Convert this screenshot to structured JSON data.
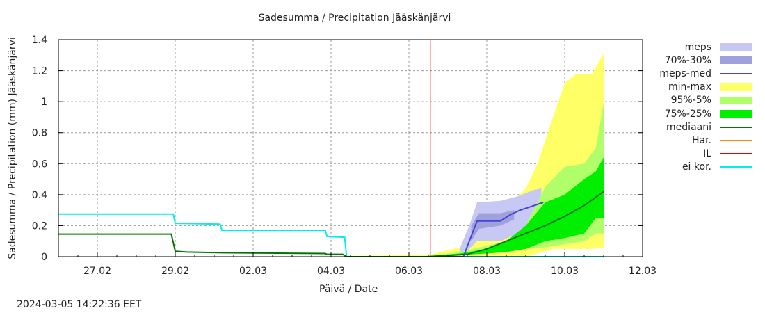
{
  "header": {
    "title": "Sadesumma / Precipitation  Jääskänjärvi"
  },
  "axes": {
    "ylabel": "Sadesumma / Precipitation (mm)  Jääskänjärvi",
    "xlabel": "Päivä / Date",
    "yticks": [
      "0",
      "0.2",
      "0.4",
      "0.6",
      "0.8",
      "1",
      "1.2",
      "1.4"
    ],
    "xticks": [
      "27.02",
      "29.02",
      "02.03",
      "04.03",
      "06.03",
      "08.03",
      "10.03",
      "12.03"
    ]
  },
  "footer": {
    "timestamp": "2024-03-05 14:22:36 EET"
  },
  "legend": [
    {
      "label": "meps",
      "type": "band",
      "color": "#c8c8f5"
    },
    {
      "label": "70%-30%",
      "type": "band",
      "color": "#a0a0dc"
    },
    {
      "label": "meps-med",
      "type": "line",
      "color": "#4444dd"
    },
    {
      "label": "min-max",
      "type": "band",
      "color": "#ffff66"
    },
    {
      "label": "95%-5%",
      "type": "band",
      "color": "#b0ff6a"
    },
    {
      "label": "75%-25%",
      "type": "band",
      "color": "#00ee00"
    },
    {
      "label": "mediaani",
      "type": "line",
      "color": "#007700"
    },
    {
      "label": "Har.",
      "type": "line",
      "color": "#ff8800"
    },
    {
      "label": "IL",
      "type": "line",
      "color": "#ee0000"
    },
    {
      "label": "ei kor.",
      "type": "line",
      "color": "#00eeee"
    }
  ],
  "chart_data": {
    "type": "area",
    "title": "Sadesumma / Precipitation  Jääskänjärvi",
    "xlabel": "Päivä / Date",
    "ylabel": "Sadesumma / Precipitation (mm)  Jääskänjärvi",
    "ylim": [
      0,
      1.4
    ],
    "xlim": [
      "26.02",
      "12.03"
    ],
    "grid": true,
    "legend_position": "right",
    "x_unit": "days since 26.02 00:00",
    "vertical_marker": {
      "name": "IL",
      "x": 9.55,
      "color": "#ee0000"
    },
    "series": [
      {
        "name": "ei kor.",
        "type": "line",
        "color": "#00eeee",
        "x": [
          0.0,
          2.95,
          3.0,
          4.15,
          4.2,
          6.85,
          6.9,
          7.35,
          7.4,
          14.0
        ],
        "y": [
          0.275,
          0.275,
          0.215,
          0.21,
          0.17,
          0.17,
          0.13,
          0.125,
          0.0,
          0.0
        ]
      },
      {
        "name": "mediaani",
        "type": "line",
        "color": "#007700",
        "x": [
          0.0,
          2.9,
          3.0,
          3.3,
          4.2,
          6.85,
          6.9,
          7.3,
          7.4,
          9.5,
          10.5,
          11.0,
          11.5,
          12.0,
          12.5,
          13.0,
          13.5,
          14.0
        ],
        "y": [
          0.145,
          0.145,
          0.035,
          0.03,
          0.025,
          0.02,
          0.015,
          0.015,
          0.0,
          0.0,
          0.015,
          0.05,
          0.1,
          0.15,
          0.2,
          0.26,
          0.33,
          0.42
        ]
      },
      {
        "name": "meps-med",
        "type": "line",
        "color": "#4444dd",
        "x": [
          10.0,
          10.4,
          10.55,
          10.75,
          11.35,
          11.6,
          11.85,
          12.1,
          12.45
        ],
        "y": [
          0.0,
          0.0,
          0.1,
          0.23,
          0.23,
          0.27,
          0.3,
          0.32,
          0.35
        ]
      },
      {
        "name": "meps",
        "type": "band",
        "color": "#c8c8f5",
        "x": [
          10.3,
          10.55,
          10.75,
          11.35,
          11.8,
          12.2,
          12.4
        ],
        "low": [
          0.0,
          0.05,
          0.1,
          0.1,
          0.15,
          0.25,
          0.3
        ],
        "high": [
          0.05,
          0.2,
          0.35,
          0.36,
          0.39,
          0.43,
          0.44
        ]
      },
      {
        "name": "70%-30%",
        "type": "band",
        "color": "#a0a0dc",
        "x": [
          10.6,
          10.8,
          11.35,
          11.7
        ],
        "low": [
          0.1,
          0.18,
          0.2,
          0.24
        ],
        "high": [
          0.2,
          0.28,
          0.28,
          0.3
        ]
      },
      {
        "name": "min-max",
        "type": "band",
        "color": "#ffff66",
        "x": [
          7.3,
          9.5,
          10.3,
          10.8,
          11.4,
          12.0,
          12.3,
          12.7,
          13.0,
          13.3,
          13.7,
          14.0
        ],
        "low": [
          0.0,
          0.0,
          0.0,
          0.0,
          0.0,
          0.0,
          0.02,
          0.05,
          0.05,
          0.05,
          0.05,
          0.06
        ],
        "high": [
          0.005,
          0.01,
          0.06,
          0.1,
          0.3,
          0.44,
          0.6,
          0.9,
          1.12,
          1.18,
          1.18,
          1.31
        ]
      },
      {
        "name": "95%-5%",
        "type": "band",
        "color": "#b0ff6a",
        "x": [
          9.5,
          10.3,
          11.0,
          11.5,
          12.0,
          12.5,
          13.0,
          13.5,
          13.8,
          14.0
        ],
        "low": [
          0.0,
          0.01,
          0.02,
          0.03,
          0.05,
          0.06,
          0.08,
          0.1,
          0.15,
          0.15
        ],
        "high": [
          0.005,
          0.03,
          0.07,
          0.1,
          0.2,
          0.45,
          0.58,
          0.6,
          0.7,
          0.99
        ]
      },
      {
        "name": "75%-25%",
        "type": "band",
        "color": "#00ee00",
        "x": [
          9.5,
          10.3,
          11.0,
          11.5,
          12.0,
          12.5,
          13.0,
          13.5,
          13.8,
          14.0
        ],
        "low": [
          0.0,
          0.01,
          0.02,
          0.03,
          0.05,
          0.1,
          0.12,
          0.15,
          0.25,
          0.25
        ],
        "high": [
          0.005,
          0.02,
          0.05,
          0.1,
          0.2,
          0.35,
          0.4,
          0.5,
          0.55,
          0.64
        ]
      },
      {
        "name": "Har.",
        "type": "line",
        "color": "#ff8800",
        "x": [],
        "y": []
      },
      {
        "name": "IL",
        "type": "line",
        "color": "#ee0000",
        "x": [
          9.55,
          9.55
        ],
        "y": [
          0,
          1.4
        ]
      }
    ]
  }
}
